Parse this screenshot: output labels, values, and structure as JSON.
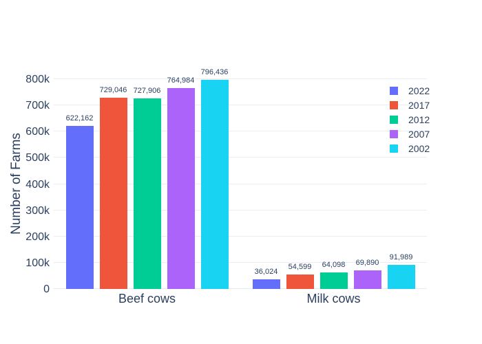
{
  "chart_data": {
    "type": "bar",
    "title": "",
    "xlabel": "",
    "ylabel": "Number of Farms",
    "categories": [
      "Beef cows",
      "Milk cows"
    ],
    "series": [
      {
        "name": "2022",
        "color": "#636EFA",
        "values": [
          622162,
          36024
        ],
        "labels": [
          "622,162",
          "36,024"
        ]
      },
      {
        "name": "2017",
        "color": "#EF553B",
        "values": [
          729046,
          54599
        ],
        "labels": [
          "729,046",
          "54,599"
        ]
      },
      {
        "name": "2012",
        "color": "#00CC96",
        "values": [
          727906,
          64098
        ],
        "labels": [
          "727,906",
          "64,098"
        ]
      },
      {
        "name": "2007",
        "color": "#AB63FA",
        "values": [
          764984,
          69890
        ],
        "labels": [
          "764,984",
          "69,890"
        ]
      },
      {
        "name": "2002",
        "color": "#19D3F3",
        "values": [
          796436,
          91989
        ],
        "labels": [
          "796,436",
          "91,989"
        ]
      }
    ],
    "ylim": [
      0,
      800000
    ],
    "yticks": [
      {
        "value": 0,
        "label": "0"
      },
      {
        "value": 100000,
        "label": "100k"
      },
      {
        "value": 200000,
        "label": "200k"
      },
      {
        "value": 300000,
        "label": "300k"
      },
      {
        "value": 400000,
        "label": "400k"
      },
      {
        "value": 500000,
        "label": "500k"
      },
      {
        "value": 600000,
        "label": "600k"
      },
      {
        "value": 700000,
        "label": "700k"
      },
      {
        "value": 800000,
        "label": "800k"
      }
    ],
    "grid": true,
    "legend_position": "top-right",
    "barmode": "group"
  },
  "colors": {
    "text": "#2a3f5f",
    "grid": "#e9eef6",
    "background": "#ffffff"
  }
}
